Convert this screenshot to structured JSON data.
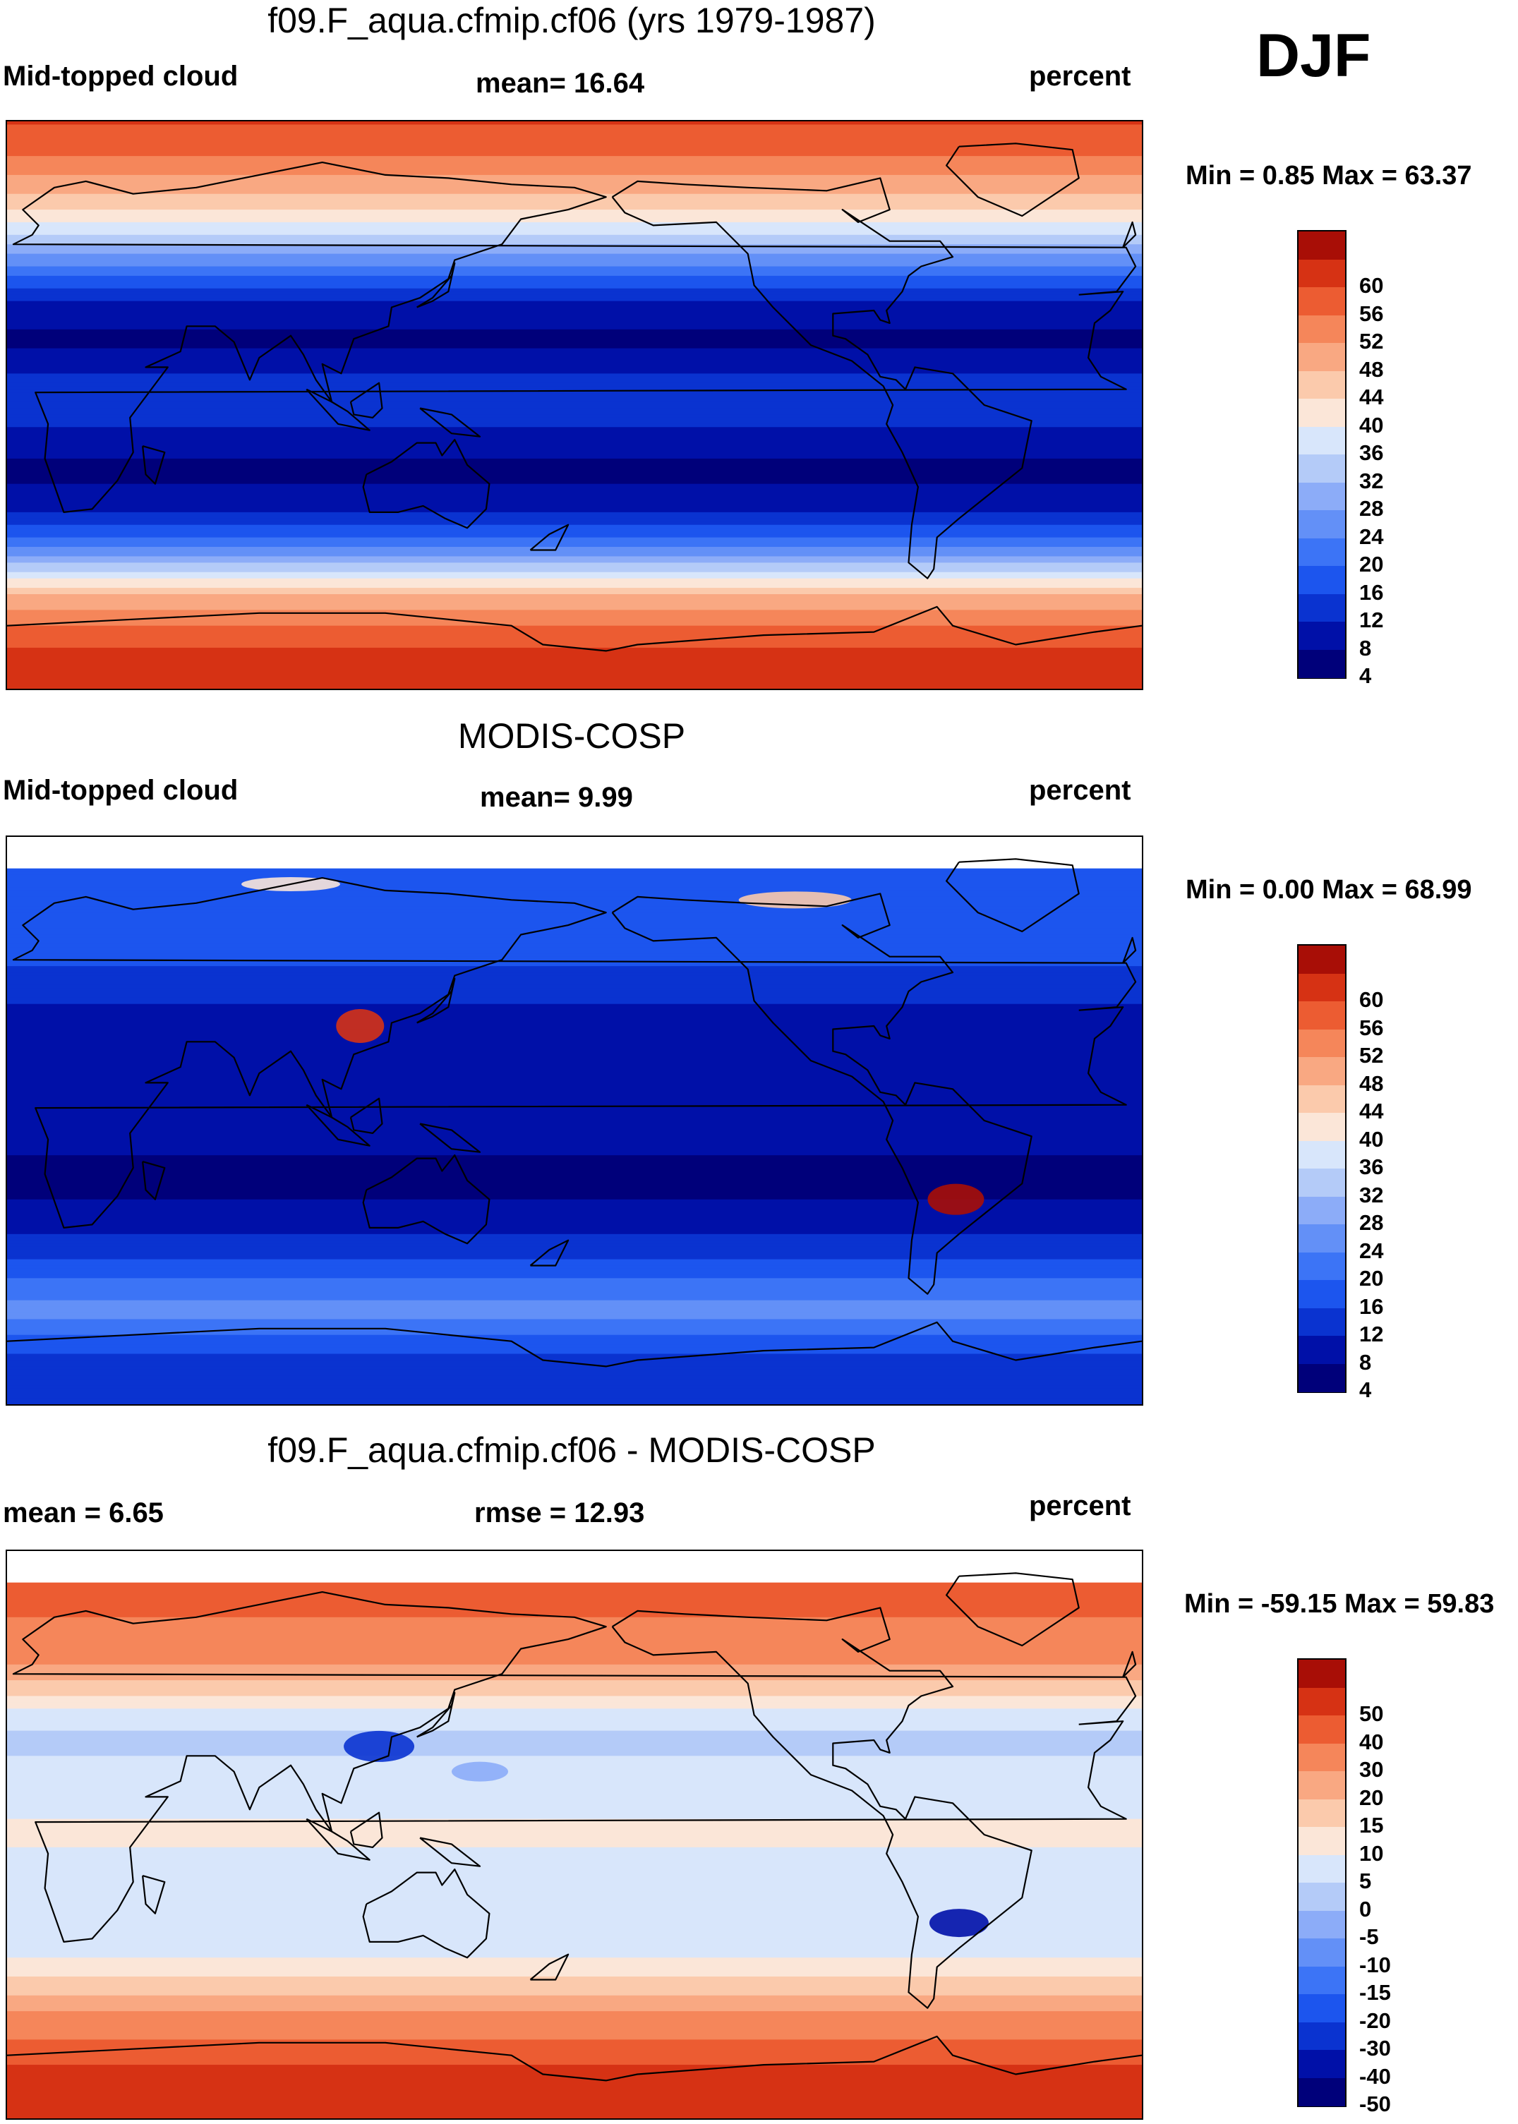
{
  "season": "DJF",
  "panels": [
    {
      "id": "model",
      "title": "f09.F_aqua.cfmip.cf06 (yrs 1979-1987)",
      "left_label": "Mid-topped cloud",
      "center_label": "mean=  16.64",
      "right_label": "percent",
      "minmax": "Min =   0.85 Max =  63.37"
    },
    {
      "id": "obs",
      "title": "MODIS-COSP",
      "left_label": "Mid-topped cloud",
      "center_label": "mean=   9.99",
      "right_label": "percent",
      "minmax": "Min =   0.00 Max =  68.99"
    },
    {
      "id": "diff",
      "title": "f09.F_aqua.cfmip.cf06 - MODIS-COSP",
      "left_label": "mean =    6.65",
      "center_label": "rmse =  12.93",
      "right_label": "percent",
      "minmax": "Min = -59.15 Max =  59.83"
    }
  ],
  "chart_data": [
    {
      "type": "heatmap",
      "title": "f09.F_aqua.cfmip.cf06 (yrs 1979-1987)",
      "variable": "Mid-topped cloud",
      "units": "percent",
      "mean": 16.64,
      "min": 0.85,
      "max": 63.37,
      "colorbar_levels": [
        4,
        8,
        12,
        16,
        20,
        24,
        28,
        32,
        36,
        40,
        44,
        48,
        52,
        56,
        60
      ],
      "colorbar_colors": [
        "#00007a",
        "#0010a8",
        "#0a33d0",
        "#1c55ee",
        "#3c74f6",
        "#6390f7",
        "#8cacf8",
        "#b4cbf8",
        "#d8e6fb",
        "#fbe6d8",
        "#fbcaac",
        "#f9a882",
        "#f5865a",
        "#ec5c32",
        "#d63214",
        "#a80e06"
      ],
      "zonal_profile": {
        "lat": [
          90,
          80,
          70,
          60,
          50,
          40,
          30,
          20,
          10,
          0,
          -10,
          -20,
          -30,
          -40,
          -50,
          -60,
          -70,
          -80,
          -90
        ],
        "value": [
          56,
          52,
          46,
          38,
          26,
          14,
          5,
          3,
          8,
          11,
          6,
          3,
          5,
          14,
          28,
          44,
          52,
          58,
          60
        ]
      }
    },
    {
      "type": "heatmap",
      "title": "MODIS-COSP",
      "variable": "Mid-topped cloud",
      "units": "percent",
      "mean": 9.99,
      "min": 0.0,
      "max": 68.99,
      "colorbar_levels": [
        4,
        8,
        12,
        16,
        20,
        24,
        28,
        32,
        36,
        40,
        44,
        48,
        52,
        56,
        60
      ],
      "colorbar_colors": [
        "#00007a",
        "#0010a8",
        "#0a33d0",
        "#1c55ee",
        "#3c74f6",
        "#6390f7",
        "#8cacf8",
        "#b4cbf8",
        "#d8e6fb",
        "#fbe6d8",
        "#fbcaac",
        "#f9a882",
        "#f5865a",
        "#ec5c32",
        "#d63214",
        "#a80e06"
      ],
      "zonal_profile": {
        "lat": [
          90,
          80,
          70,
          60,
          50,
          40,
          30,
          20,
          10,
          0,
          -10,
          -20,
          -30,
          -40,
          -50,
          -60,
          -70,
          -80,
          -90
        ],
        "value": [
          null,
          14,
          13,
          13,
          12,
          9,
          5,
          4,
          5,
          6,
          4,
          3,
          5,
          10,
          16,
          22,
          14,
          8,
          8
        ]
      }
    },
    {
      "type": "heatmap",
      "title": "f09.F_aqua.cfmip.cf06 - MODIS-COSP",
      "variable": "difference",
      "units": "percent",
      "mean": 6.65,
      "rmse": 12.93,
      "min": -59.15,
      "max": 59.83,
      "colorbar_levels": [
        -50,
        -40,
        -30,
        -20,
        -15,
        -10,
        -5,
        0,
        5,
        10,
        15,
        20,
        30,
        40,
        50
      ],
      "colorbar_colors": [
        "#00007a",
        "#0010a8",
        "#0a33d0",
        "#1c55ee",
        "#3c74f6",
        "#6390f7",
        "#8cacf8",
        "#b4cbf8",
        "#d8e6fb",
        "#fbe6d8",
        "#fbcaac",
        "#f9a882",
        "#f5865a",
        "#ec5c32",
        "#d63214",
        "#a80e06"
      ],
      "zonal_profile": {
        "lat": [
          90,
          80,
          70,
          60,
          50,
          40,
          30,
          20,
          10,
          0,
          -10,
          -20,
          -30,
          -40,
          -50,
          -60,
          -70,
          -80,
          -90
        ],
        "value": [
          null,
          36,
          30,
          24,
          16,
          4,
          -2,
          2,
          4,
          6,
          3,
          1,
          0,
          6,
          14,
          24,
          38,
          46,
          50
        ]
      }
    }
  ]
}
